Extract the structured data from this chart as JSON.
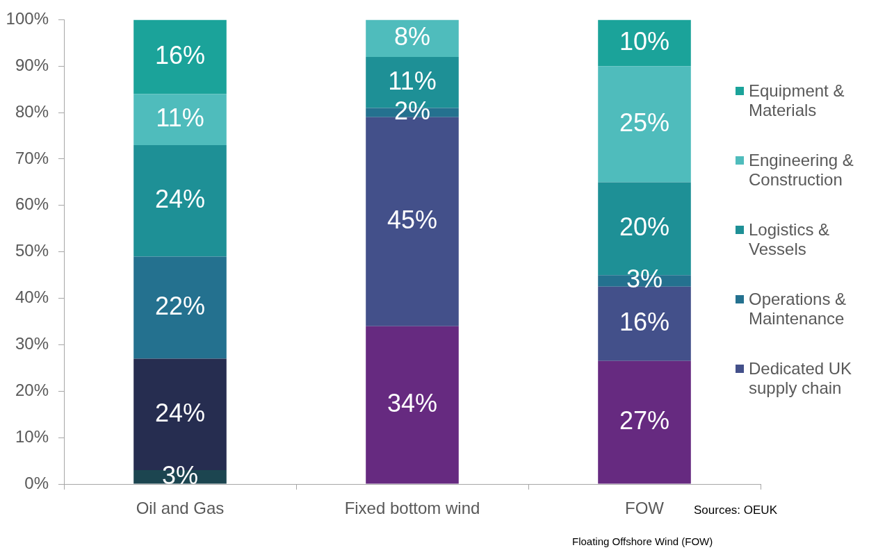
{
  "chart_data": {
    "type": "bar",
    "categories": [
      "Oil and Gas",
      "Fixed bottom wind",
      "FOW"
    ],
    "stacked": true,
    "ylim": [
      0,
      100
    ],
    "yticks": [
      {
        "value": 0,
        "label": "0%"
      },
      {
        "value": 10,
        "label": "10%"
      },
      {
        "value": 20,
        "label": "20%"
      },
      {
        "value": 30,
        "label": "30%"
      },
      {
        "value": 40,
        "label": "40%"
      },
      {
        "value": 50,
        "label": "50%"
      },
      {
        "value": 60,
        "label": "60%"
      },
      {
        "value": 70,
        "label": "70%"
      },
      {
        "value": 80,
        "label": "80%"
      },
      {
        "value": 90,
        "label": "90%"
      },
      {
        "value": 100,
        "label": "100%"
      }
    ],
    "legend": "right",
    "annotations": [
      "Sources: OEUK",
      "Floating Offshore Wind (FOW)"
    ],
    "series": [
      {
        "color": "#1c4550",
        "values": [
          3,
          null,
          null
        ],
        "value_labels": [
          "3%",
          null,
          null
        ]
      },
      {
        "color": "#262d50",
        "values": [
          24,
          null,
          null
        ],
        "value_labels": [
          "24%",
          null,
          null
        ]
      },
      {
        "color": "#662a80",
        "values": [
          null,
          34,
          26.5
        ],
        "value_labels": [
          null,
          "34%",
          "27%"
        ]
      },
      {
        "name": "Dedicated UK supply chain",
        "color": "#43508a",
        "values": [
          null,
          45,
          16
        ],
        "value_labels": [
          null,
          "45%",
          "16%"
        ]
      },
      {
        "name": "Operations & Maintenance",
        "color": "#24718f",
        "values": [
          22,
          2,
          2.5
        ],
        "value_labels": [
          "22%",
          "2%",
          "3%"
        ]
      },
      {
        "name": "Logistics & Vessels",
        "color": "#1e9096",
        "values": [
          24,
          11,
          20
        ],
        "value_labels": [
          "24%",
          "11%",
          "20%"
        ]
      },
      {
        "name": "Engineering & Construction",
        "color": "#4fbcbc",
        "values": [
          11,
          8,
          25
        ],
        "value_labels": [
          "11%",
          "8%",
          "25%"
        ]
      },
      {
        "name": "Equipment & Materials",
        "color": "#1ba39a",
        "values": [
          16,
          null,
          10
        ],
        "value_labels": [
          "16%",
          null,
          "10%"
        ]
      }
    ]
  }
}
